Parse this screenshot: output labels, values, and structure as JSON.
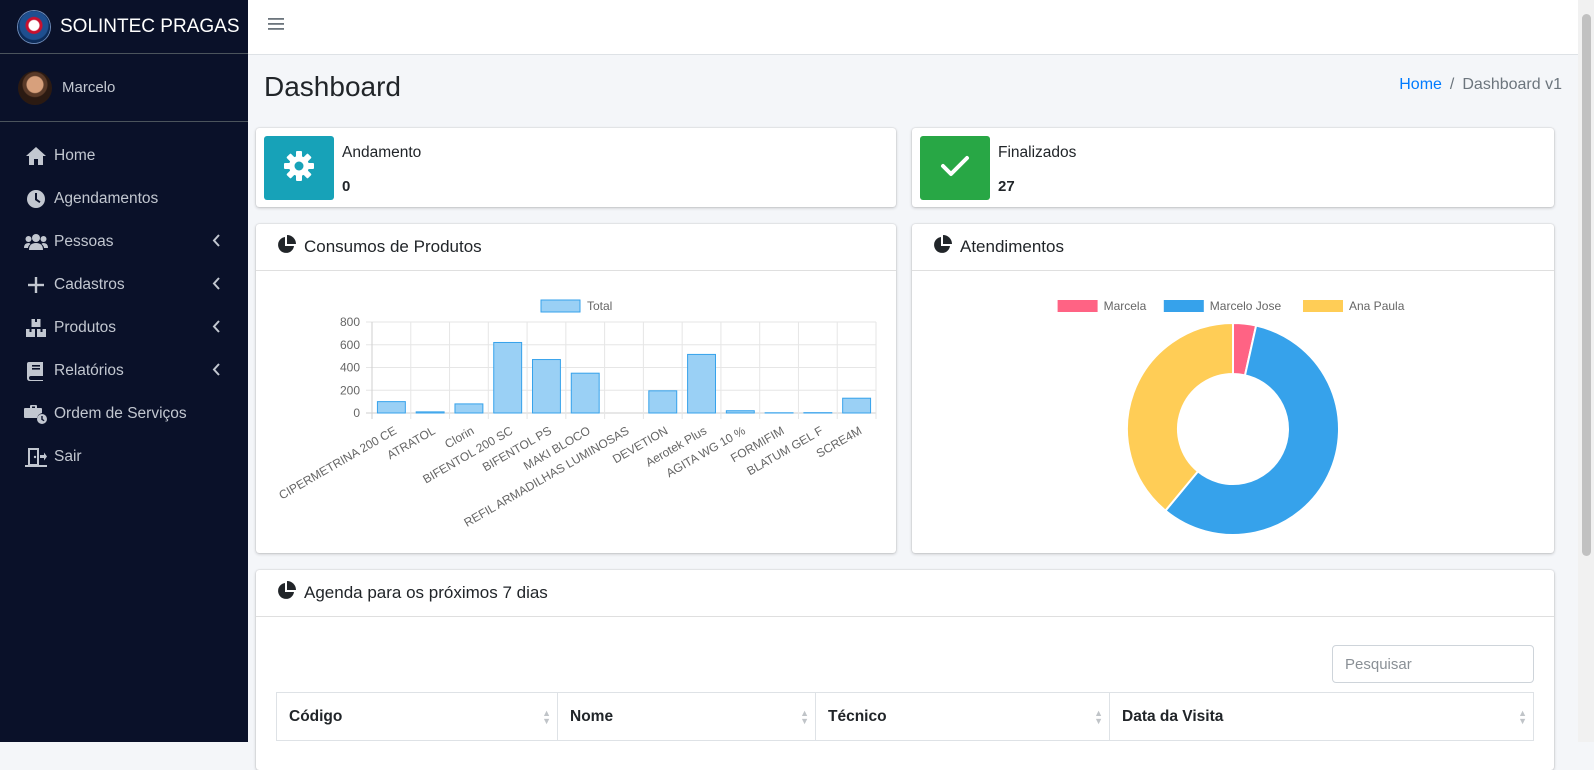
{
  "brand": {
    "name": "SOLINTEC PRAGAS"
  },
  "user": {
    "name": "Marcelo"
  },
  "sidebar": {
    "items": [
      {
        "label": "Home",
        "icon": "home-icon"
      },
      {
        "label": "Agendamentos",
        "icon": "clock-icon"
      },
      {
        "label": "Pessoas",
        "icon": "users-icon",
        "has_submenu": true
      },
      {
        "label": "Cadastros",
        "icon": "plus-icon",
        "has_submenu": true
      },
      {
        "label": "Produtos",
        "icon": "boxes-icon",
        "has_submenu": true
      },
      {
        "label": "Relatórios",
        "icon": "book-icon",
        "has_submenu": true
      },
      {
        "label": "Ordem de Serviços",
        "icon": "briefcase-icon"
      },
      {
        "label": "Sair",
        "icon": "door-exit-icon"
      }
    ]
  },
  "header": {
    "menu_icon": "hamburger-icon"
  },
  "page": {
    "title": "Dashboard"
  },
  "breadcrumb": {
    "home": "Home",
    "current": "Dashboard v1"
  },
  "info_boxes": [
    {
      "label": "Andamento",
      "value": "0",
      "color": "#17a2b8",
      "icon": "gear-icon"
    },
    {
      "label": "Finalizados",
      "value": "27",
      "color": "#28a745",
      "icon": "check-icon"
    }
  ],
  "cards": {
    "consumos": {
      "title": "Consumos de Produtos",
      "icon": "pie-chart-icon"
    },
    "atendimentos": {
      "title": "Atendimentos",
      "icon": "pie-chart-icon"
    },
    "agenda": {
      "title": "Agenda para os próximos 7 dias",
      "icon": "pie-chart-icon"
    }
  },
  "chart_data": [
    {
      "type": "bar",
      "categories": [
        "CIPERMETRINA 200 CE",
        "ATRATOL",
        "Clorin",
        "BIFENTOL 200 SC",
        "BIFENTOL PS",
        "MAKI BLOCO",
        "REFIL ARMADILHAS LUMINOSAS",
        "DEVETION",
        "Aerotek Plus",
        "AGITA WG 10 %",
        "FORMIFIM",
        "BLATUM GEL F",
        "SCRE4M"
      ],
      "series": [
        {
          "name": "Total",
          "values": [
            100,
            10,
            80,
            620,
            470,
            350,
            0,
            195,
            515,
            20,
            2,
            3,
            130
          ]
        }
      ],
      "ylim": [
        0,
        800
      ],
      "yticks": [
        0,
        200,
        400,
        600,
        800
      ],
      "grid": true,
      "legend": "top",
      "colors": {
        "fill": "#9ad0f5",
        "stroke": "#36a2eb"
      }
    },
    {
      "type": "pie",
      "donut": true,
      "labels": [
        "Marcela",
        "Marcelo Jose",
        "Ana Paula"
      ],
      "values": [
        3.5,
        57.5,
        39
      ],
      "colors": [
        "#ff6384",
        "#36a2eb",
        "#ffcd56"
      ],
      "legend": "top"
    }
  ],
  "table": {
    "search_placeholder": "Pesquisar",
    "columns": [
      "Código",
      "Nome",
      "Técnico",
      "Data da Visita"
    ]
  }
}
